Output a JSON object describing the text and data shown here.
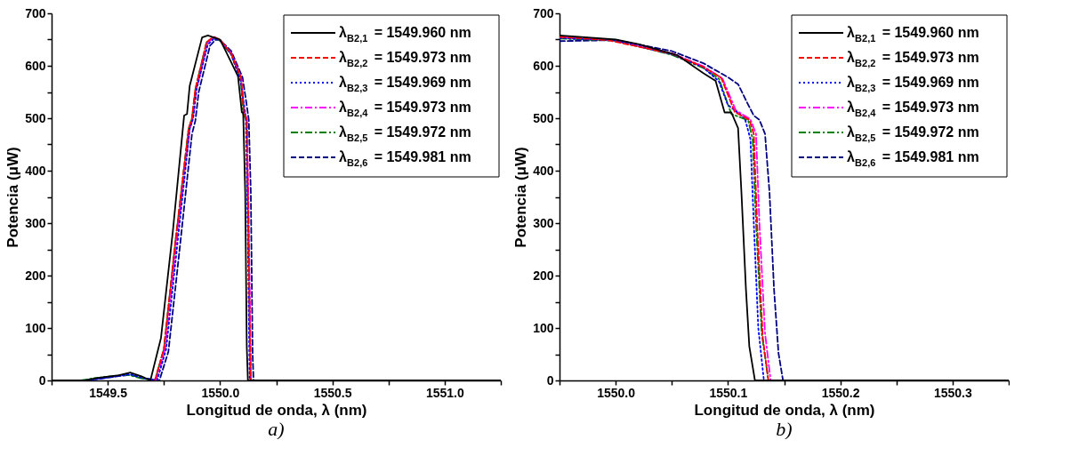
{
  "chart_data": [
    {
      "type": "line",
      "xlabel": "Longitud de onda, λ (nm)",
      "ylabel": "Potencia (μW)",
      "annotations": [
        "a)"
      ],
      "legend": "top right",
      "grid": false,
      "marker": "none",
      "xlim": [
        1549.25,
        1551.25
      ],
      "xticks": [
        {
          "value": 1549.25,
          "label": null
        },
        1549.5,
        {
          "value": 1549.75,
          "label": null
        },
        {
          "value": 1550.0,
          "label": "1550.0"
        },
        {
          "value": 1550.25,
          "label": null
        },
        1550.5,
        {
          "value": 1550.75,
          "label": null
        },
        {
          "value": 1551.0,
          "label": "1551.0"
        },
        {
          "value": 1551.25,
          "label": null
        }
      ],
      "ylim": [
        0,
        700
      ],
      "yticks": [
        0,
        {
          "value": 50,
          "label": null
        },
        100,
        {
          "value": 150,
          "label": null
        },
        200,
        {
          "value": 250,
          "label": null
        },
        300,
        {
          "value": 350,
          "label": null
        },
        400,
        {
          "value": 450,
          "label": null
        },
        500,
        {
          "value": 550,
          "label": null
        },
        600,
        {
          "value": 650,
          "label": null
        },
        700
      ],
      "series": [
        {
          "name": "λ$_{B2,1}$ = 1549.960 nm",
          "color": "#000000",
          "line_style": "solid",
          "x": [
            1549.25,
            1549.4,
            1549.456,
            1549.55,
            1549.6,
            1549.65,
            1549.69,
            1549.737,
            1549.79,
            1549.84,
            1549.853,
            1549.865,
            1549.92,
            1549.946,
            1550.0,
            1550.046,
            1550.08,
            1550.097,
            1550.103,
            1550.112,
            1550.119,
            1550.124,
            1551.25
          ],
          "values": [
            0,
            0,
            5,
            10,
            15,
            8,
            0,
            81,
            285,
            505,
            508,
            562,
            654,
            658,
            650,
            610,
            580,
            511,
            511,
            358,
            65,
            0,
            0
          ]
        },
        {
          "name": "λ$_{B2,2}$ = 1549.973 nm",
          "color": "#ff0000",
          "line_style": "dashed",
          "x": [
            1549.71,
            1549.75,
            1549.8,
            1549.86,
            1549.875,
            1549.89,
            1549.94,
            1549.97,
            1550.0,
            1550.05,
            1550.094,
            1550.106,
            1550.119,
            1550.126,
            1550.136,
            1551.25
          ],
          "values": [
            0,
            60,
            260,
            480,
            500,
            555,
            645,
            655,
            650,
            623,
            577,
            512,
            497,
            297,
            0,
            0
          ]
        },
        {
          "name": "λ$_{B2,3}$ = 1549.969 nm",
          "color": "#0000ff",
          "line_style": "dotted",
          "x": [
            1549.25,
            1549.4,
            1549.46,
            1549.6,
            1549.65,
            1549.72,
            1549.76,
            1549.81,
            1549.865,
            1549.88,
            1549.895,
            1549.945,
            1549.975,
            1550.0,
            1550.05,
            1550.092,
            1550.115,
            1550.123,
            1550.132,
            1551.25
          ],
          "values": [
            0,
            0,
            3,
            12,
            5,
            0,
            60,
            260,
            480,
            500,
            555,
            640,
            653,
            648,
            622,
            570,
            500,
            300,
            0,
            0
          ]
        },
        {
          "name": "λ$_{B2,4}$ = 1549.973 nm",
          "color": "#ff00ff",
          "line_style": "dashdot",
          "x": [
            1549.715,
            1549.755,
            1549.805,
            1549.865,
            1549.88,
            1549.895,
            1549.945,
            1549.975,
            1550.0,
            1550.05,
            1550.095,
            1550.107,
            1550.12,
            1550.128,
            1550.138,
            1551.25
          ],
          "values": [
            0,
            60,
            260,
            480,
            500,
            555,
            645,
            655,
            649,
            624,
            576,
            515,
            498,
            300,
            0,
            0
          ]
        },
        {
          "name": "λ$_{B2,5}$ = 1549.972 nm",
          "color": "#008000",
          "line_style": "dashdot",
          "x": [
            1549.25,
            1549.38,
            1549.45,
            1549.59,
            1549.64,
            1549.71,
            1549.75,
            1549.8,
            1549.86,
            1549.875,
            1549.89,
            1549.94,
            1549.97,
            1550.0,
            1550.05,
            1550.092,
            1550.103,
            1550.118,
            1550.125,
            1550.136,
            1551.25
          ],
          "values": [
            0,
            0,
            5,
            11,
            5,
            0,
            60,
            260,
            480,
            500,
            555,
            645,
            654,
            648,
            621,
            575,
            508,
            496,
            300,
            0,
            0
          ]
        },
        {
          "name": "λ$_{B2,6}$ = 1549.981 nm",
          "color": "#000080",
          "line_style": "dashed",
          "x": [
            1549.25,
            1549.4,
            1549.46,
            1549.6,
            1549.65,
            1549.73,
            1549.77,
            1549.82,
            1549.875,
            1549.89,
            1549.905,
            1549.955,
            1549.98,
            1550.0,
            1550.05,
            1550.1,
            1550.117,
            1550.128,
            1550.137,
            1550.145,
            1550.149,
            1551.25
          ],
          "values": [
            0,
            0,
            3,
            11,
            5,
            0,
            55,
            250,
            470,
            495,
            550,
            638,
            650,
            649,
            628,
            578,
            530,
            497,
            358,
            52,
            0,
            0
          ]
        }
      ]
    },
    {
      "type": "line",
      "xlabel": "Longitud de onda, λ (nm)",
      "ylabel": "Potencia (μW)",
      "annotations": [
        "b)"
      ],
      "legend": "top right",
      "grid": false,
      "marker": "none",
      "xlim": [
        1549.95,
        1550.35
      ],
      "xticks": [
        {
          "value": 1549.95,
          "label": null
        },
        {
          "value": 1550.0,
          "label": "1550.0"
        },
        {
          "value": 1550.05,
          "label": null
        },
        1550.1,
        {
          "value": 1550.15,
          "label": null
        },
        1550.2,
        {
          "value": 1550.25,
          "label": null
        },
        1550.3,
        {
          "value": 1550.35,
          "label": null
        }
      ],
      "ylim": [
        0,
        700
      ],
      "yticks": [
        0,
        {
          "value": 50,
          "label": null
        },
        100,
        {
          "value": 150,
          "label": null
        },
        200,
        {
          "value": 250,
          "label": null
        },
        300,
        {
          "value": 350,
          "label": null
        },
        400,
        {
          "value": 450,
          "label": null
        },
        500,
        {
          "value": 550,
          "label": null
        },
        600,
        {
          "value": 650,
          "label": null
        },
        700
      ],
      "series": [
        {
          "name": "λ$_{B2,1}$ = 1549.960 nm",
          "color": "#000000",
          "line_style": "solid",
          "x": [
            1549.95,
            1550.0,
            1550.021,
            1550.055,
            1550.078,
            1550.089,
            1550.097,
            1550.103,
            1550.109,
            1550.112,
            1550.116,
            1550.119,
            1550.124,
            1550.35
          ],
          "values": [
            658,
            650,
            641,
            620,
            586,
            571,
            511,
            511,
            481,
            358,
            174,
            65,
            0,
            0
          ]
        },
        {
          "name": "λ$_{B2,2}$ = 1549.973 nm",
          "color": "#ff0000",
          "line_style": "dashed",
          "x": [
            1549.95,
            1549.993,
            1550.05,
            1550.078,
            1550.094,
            1550.106,
            1550.119,
            1550.123,
            1550.126,
            1550.131,
            1550.136,
            1550.35
          ],
          "values": [
            655,
            649,
            623,
            598,
            577,
            512,
            497,
            470,
            297,
            82,
            0,
            0
          ]
        },
        {
          "name": "λ$_{B2,3}$ = 1549.969 nm",
          "color": "#0000ff",
          "line_style": "dotted",
          "x": [
            1549.95,
            1550.0,
            1550.05,
            1550.078,
            1550.092,
            1550.1,
            1550.115,
            1550.12,
            1550.123,
            1550.127,
            1550.132,
            1550.35
          ],
          "values": [
            653,
            648,
            622,
            597,
            570,
            525,
            500,
            460,
            300,
            100,
            0,
            0
          ]
        },
        {
          "name": "λ$_{B2,4}$ = 1549.973 nm",
          "color": "#ff00ff",
          "line_style": "dashdot",
          "x": [
            1549.95,
            1550.0,
            1550.05,
            1550.078,
            1550.095,
            1550.107,
            1550.12,
            1550.125,
            1550.128,
            1550.133,
            1550.138,
            1550.35
          ],
          "values": [
            655,
            649,
            624,
            599,
            576,
            515,
            498,
            470,
            300,
            90,
            0,
            0
          ]
        },
        {
          "name": "λ$_{B2,5}$ = 1549.972 nm",
          "color": "#008000",
          "line_style": "dashdot",
          "x": [
            1549.95,
            1550.0,
            1550.05,
            1550.078,
            1550.092,
            1550.103,
            1550.118,
            1550.122,
            1550.125,
            1550.13,
            1550.136,
            1550.35
          ],
          "values": [
            652,
            648,
            621,
            596,
            575,
            508,
            496,
            460,
            300,
            90,
            0,
            0
          ]
        },
        {
          "name": "λ$_{B2,6}$ = 1549.981 nm",
          "color": "#000080",
          "line_style": "dashed",
          "x": [
            1549.95,
            1550.0,
            1550.05,
            1550.078,
            1550.1,
            1550.109,
            1550.117,
            1550.123,
            1550.128,
            1550.133,
            1550.137,
            1550.141,
            1550.145,
            1550.149,
            1550.35
          ],
          "values": [
            647,
            649,
            628,
            605,
            578,
            565,
            530,
            505,
            497,
            470,
            358,
            174,
            52,
            0,
            0
          ]
        }
      ]
    }
  ]
}
